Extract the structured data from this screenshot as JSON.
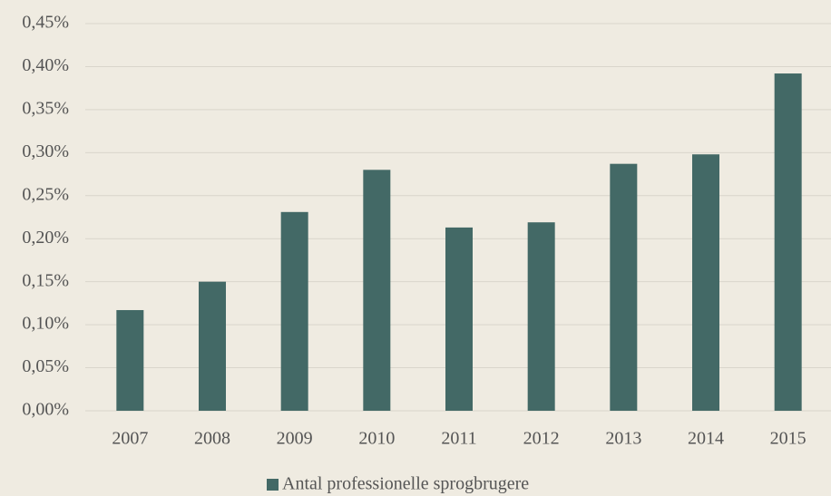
{
  "chart_data": {
    "type": "bar",
    "categories": [
      "2007",
      "2008",
      "2009",
      "2010",
      "2011",
      "2012",
      "2013",
      "2014",
      "2015"
    ],
    "series": [
      {
        "name": "Antal professionelle sprogbrugere",
        "color": "#436966",
        "values": [
          0.117,
          0.15,
          0.231,
          0.28,
          0.213,
          0.219,
          0.287,
          0.298,
          0.392
        ]
      }
    ],
    "ylim": [
      0,
      0.45
    ],
    "yticks": [
      {
        "value": 0,
        "label": "0,00%"
      },
      {
        "value": 0.05,
        "label": "0,05%"
      },
      {
        "value": 0.1,
        "label": "0,10%"
      },
      {
        "value": 0.15,
        "label": "0,15%"
      },
      {
        "value": 0.2,
        "label": "0,20%"
      },
      {
        "value": 0.25,
        "label": "0,25%"
      },
      {
        "value": 0.3,
        "label": "0,30%"
      },
      {
        "value": 0.35,
        "label": "0,35%"
      },
      {
        "value": 0.4,
        "label": "0,40%"
      },
      {
        "value": 0.45,
        "label": "0,45%"
      }
    ],
    "grid": true,
    "legend": "bottom"
  }
}
